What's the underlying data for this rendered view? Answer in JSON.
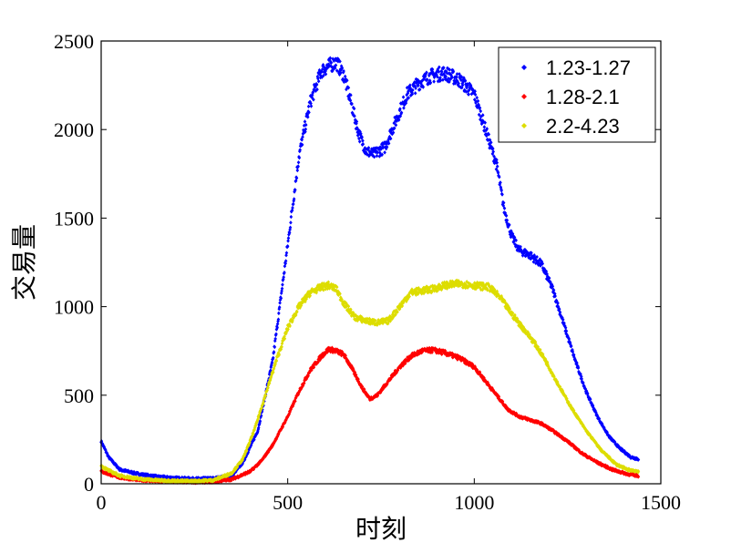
{
  "chart_data": {
    "type": "scatter",
    "title": "",
    "xlabel": "时刻",
    "ylabel": "交易量",
    "xlim": [
      0,
      1500
    ],
    "ylim": [
      0,
      2500
    ],
    "xticks": [
      "0",
      "500",
      "1000",
      "1500"
    ],
    "yticks": [
      "0",
      "500",
      "1000",
      "1500",
      "2000",
      "2500"
    ],
    "grid": false,
    "legend_position": "top-right",
    "series": [
      {
        "name": "1.23-1.27",
        "color": "#0000ff",
        "x": [
          0,
          20,
          50,
          100,
          150,
          200,
          250,
          300,
          350,
          380,
          420,
          460,
          500,
          530,
          560,
          590,
          610,
          630,
          650,
          670,
          690,
          710,
          730,
          760,
          790,
          820,
          850,
          880,
          920,
          960,
          1000,
          1030,
          1060,
          1080,
          1100,
          1120,
          1150,
          1180,
          1210,
          1240,
          1270,
          1300,
          1330,
          1360,
          1390,
          1420,
          1440
        ],
        "y": [
          240,
          150,
          80,
          55,
          40,
          32,
          28,
          30,
          45,
          120,
          300,
          700,
          1350,
          1850,
          2150,
          2330,
          2360,
          2380,
          2310,
          2150,
          1980,
          1880,
          1860,
          1900,
          2050,
          2200,
          2260,
          2300,
          2320,
          2280,
          2200,
          2000,
          1800,
          1550,
          1400,
          1320,
          1290,
          1240,
          1100,
          900,
          700,
          520,
          380,
          270,
          200,
          150,
          140
        ]
      },
      {
        "name": "1.28-2.1",
        "color": "#ff0000",
        "x": [
          0,
          20,
          50,
          100,
          150,
          200,
          250,
          300,
          350,
          400,
          430,
          460,
          500,
          530,
          560,
          590,
          610,
          630,
          650,
          670,
          700,
          720,
          740,
          770,
          800,
          830,
          860,
          890,
          920,
          960,
          1000,
          1030,
          1060,
          1090,
          1120,
          1150,
          1180,
          1210,
          1250,
          1290,
          1330,
          1370,
          1410,
          1440
        ],
        "y": [
          70,
          55,
          35,
          22,
          15,
          12,
          10,
          12,
          25,
          70,
          130,
          220,
          380,
          520,
          640,
          720,
          760,
          750,
          730,
          660,
          540,
          480,
          500,
          580,
          660,
          720,
          750,
          755,
          740,
          710,
          660,
          580,
          500,
          420,
          380,
          360,
          340,
          300,
          240,
          170,
          120,
          80,
          55,
          45
        ]
      },
      {
        "name": "2.2-4.23",
        "color": "#dddd00",
        "x": [
          0,
          20,
          50,
          100,
          150,
          200,
          250,
          300,
          350,
          380,
          410,
          440,
          470,
          500,
          530,
          560,
          590,
          610,
          630,
          650,
          680,
          710,
          740,
          770,
          800,
          830,
          860,
          890,
          920,
          960,
          1000,
          1040,
          1070,
          1100,
          1130,
          1160,
          1190,
          1220,
          1260,
          1300,
          1340,
          1380,
          1410,
          1440
        ],
        "y": [
          100,
          75,
          45,
          28,
          20,
          16,
          15,
          20,
          60,
          140,
          300,
          500,
          700,
          880,
          1000,
          1080,
          1110,
          1120,
          1100,
          1020,
          940,
          920,
          910,
          920,
          1000,
          1080,
          1090,
          1100,
          1120,
          1130,
          1120,
          1110,
          1050,
          960,
          880,
          800,
          700,
          580,
          430,
          300,
          190,
          110,
          80,
          70
        ]
      }
    ]
  }
}
